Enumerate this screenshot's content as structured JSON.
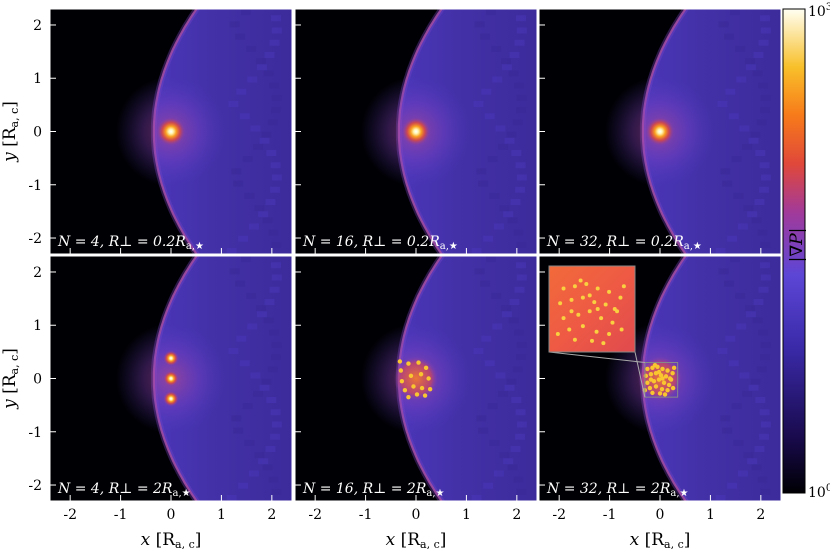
{
  "chart_data": {
    "type": "heatmap",
    "layout": {
      "rows": 2,
      "cols": 3
    },
    "xlabel": "x [R_a,c]",
    "ylabel": "y [R_a,c]",
    "xlim": [
      -2.4,
      2.4
    ],
    "ylim": [
      -2.3,
      2.3
    ],
    "x_ticks": [
      "-2",
      "-1",
      "0",
      "1",
      "2"
    ],
    "y_ticks": [
      "2",
      "1",
      "0",
      "-1",
      "-2"
    ],
    "colorbar": {
      "label": "|∇P|",
      "scale": "log",
      "range": [
        1,
        1000
      ],
      "tick_labels": [
        "10^3",
        "10^0"
      ],
      "colormap": "inferno-like",
      "colors": [
        "#000004",
        "#2a0f78",
        "#5a3fd0",
        "#c0388a",
        "#f4561c",
        "#f9b21e",
        "#fffff0"
      ]
    },
    "panels": [
      {
        "id": "a",
        "label": "N = 4, R⊥ = 0.2R_a,★",
        "N": 4,
        "R_perp_over_Ra_star": 0.2
      },
      {
        "id": "b",
        "label": "N = 16, R⊥ = 0.2R_a,★",
        "N": 16,
        "R_perp_over_Ra_star": 0.2
      },
      {
        "id": "c",
        "label": "N = 32, R⊥ = 0.2R_a,★",
        "N": 32,
        "R_perp_over_Ra_star": 0.2
      },
      {
        "id": "d",
        "label": "N = 4, R⊥ = 2R_a,★",
        "N": 4,
        "R_perp_over_Ra_star": 2,
        "points": [
          [
            0,
            0.38
          ],
          [
            0,
            0
          ],
          [
            0,
            -0.38
          ]
        ]
      },
      {
        "id": "e",
        "label": "N = 16, R⊥ = 2R_a,★",
        "N": 16,
        "R_perp_over_Ra_star": 2,
        "points": [
          [
            -0.3,
            0.15
          ],
          [
            -0.15,
            0.28
          ],
          [
            0.05,
            0.3
          ],
          [
            0.2,
            0.2
          ],
          [
            -0.28,
            -0.05
          ],
          [
            -0.1,
            0.05
          ],
          [
            0.1,
            0.08
          ],
          [
            0.25,
            0.0
          ],
          [
            -0.22,
            -0.22
          ],
          [
            -0.05,
            -0.15
          ],
          [
            0.12,
            -0.18
          ],
          [
            0.28,
            -0.2
          ],
          [
            -0.15,
            -0.35
          ],
          [
            0.02,
            -0.3
          ],
          [
            -0.32,
            0.32
          ],
          [
            0.18,
            -0.32
          ]
        ]
      },
      {
        "id": "f",
        "label": "N = 32, R⊥ = 2R_a,★",
        "N": 32,
        "R_perp_over_Ra_star": 2,
        "has_inset": true,
        "points": [
          [
            -0.25,
            0.18
          ],
          [
            -0.15,
            0.2
          ],
          [
            -0.05,
            0.22
          ],
          [
            0.05,
            0.18
          ],
          [
            0.15,
            0.15
          ],
          [
            0.25,
            0.1
          ],
          [
            -0.28,
            0.05
          ],
          [
            -0.18,
            0.08
          ],
          [
            -0.08,
            0.1
          ],
          [
            0.02,
            0.06
          ],
          [
            0.12,
            0.04
          ],
          [
            0.22,
            -0.02
          ],
          [
            -0.25,
            -0.08
          ],
          [
            -0.12,
            -0.05
          ],
          [
            -0.02,
            -0.02
          ],
          [
            0.08,
            -0.08
          ],
          [
            0.18,
            -0.12
          ],
          [
            -0.2,
            -0.18
          ],
          [
            -0.08,
            -0.15
          ],
          [
            0.04,
            -0.2
          ],
          [
            0.15,
            -0.22
          ],
          [
            0.26,
            -0.18
          ],
          [
            -0.15,
            -0.27
          ],
          [
            0.0,
            -0.28
          ],
          [
            0.1,
            -0.3
          ],
          [
            -0.3,
            -0.22
          ],
          [
            0.2,
            0.0
          ],
          [
            -0.1,
            0.25
          ],
          [
            0.05,
            0.0
          ],
          [
            -0.18,
            -0.02
          ],
          [
            0.28,
            0.2
          ],
          [
            -0.02,
            0.12
          ]
        ]
      }
    ]
  }
}
